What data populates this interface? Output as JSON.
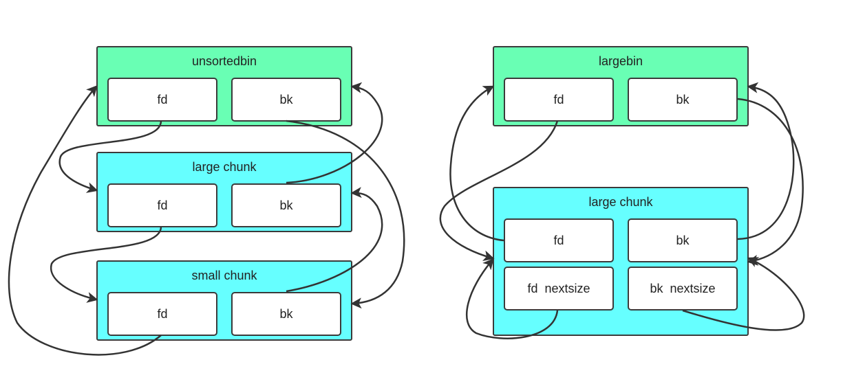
{
  "left": {
    "unsortedbin": {
      "title": "unsortedbin",
      "fd": "fd",
      "bk": "bk"
    },
    "large_chunk": {
      "title": "large chunk",
      "fd": "fd",
      "bk": "bk"
    },
    "small_chunk": {
      "title": "small chunk",
      "fd": "fd",
      "bk": "bk"
    }
  },
  "right": {
    "largebin": {
      "title": "largebin",
      "fd": "fd",
      "bk": "bk"
    },
    "large_chunk": {
      "title": "large chunk",
      "fd": "fd",
      "bk": "bk",
      "fd_nextsize": "fd  nextsize",
      "bk_nextsize": "bk  nextsize"
    }
  },
  "colors": {
    "bin_fill": "#69ffb4",
    "chunk_fill": "#66ffff",
    "stroke": "#333333"
  }
}
